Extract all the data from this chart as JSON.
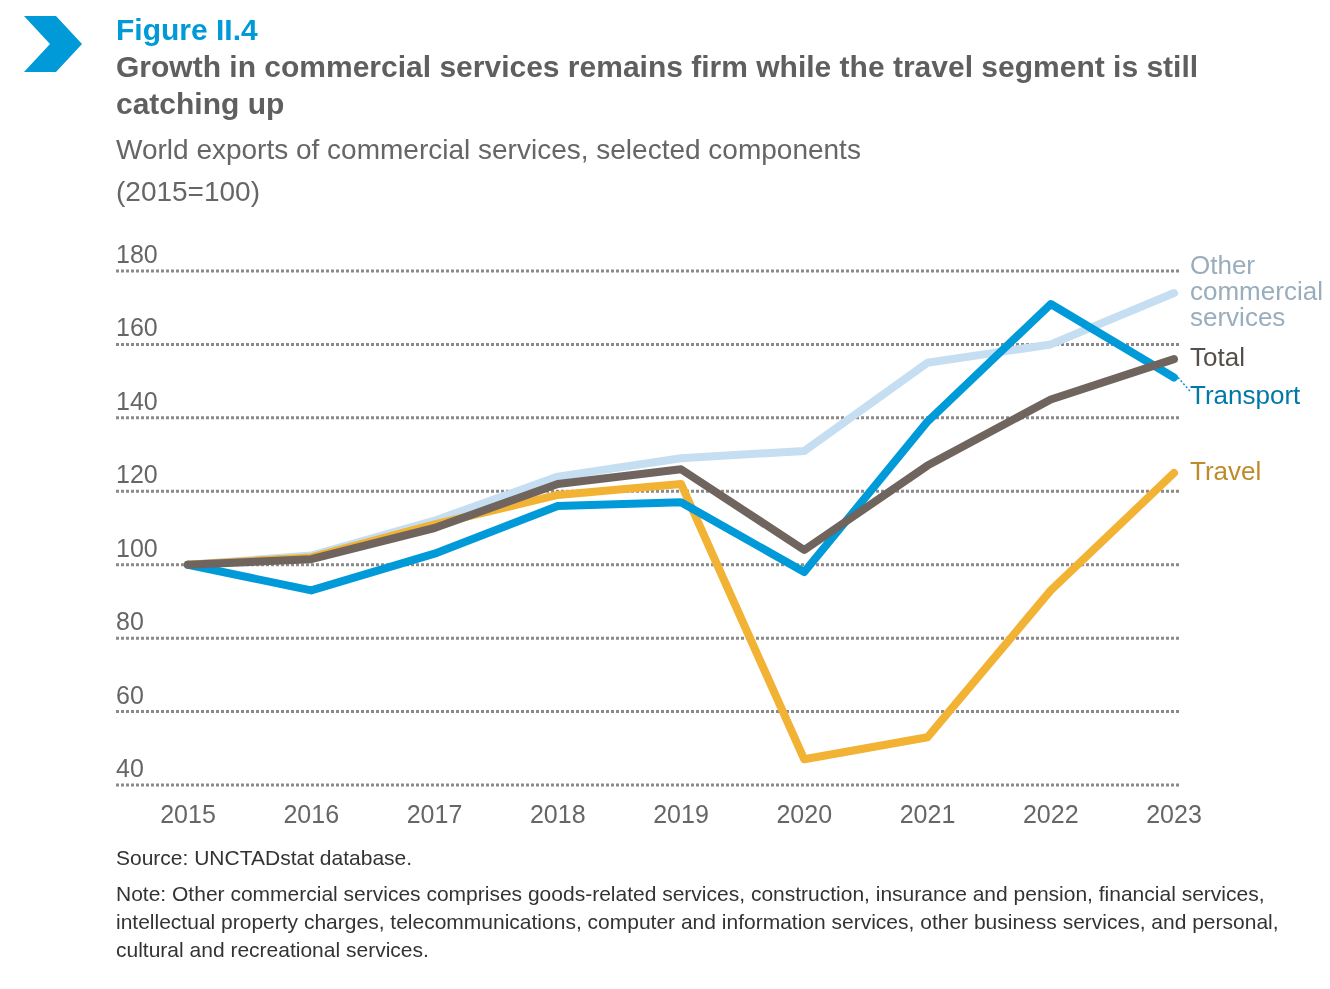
{
  "chart_data": {
    "type": "line",
    "title": "Growth in commercial services remains firm while the travel segment is still catching up",
    "subtitle": "World exports of commercial services, selected components",
    "ylabel": "(2015=100)",
    "categories": [
      "2015",
      "2016",
      "2017",
      "2018",
      "2019",
      "2020",
      "2021",
      "2022",
      "2023"
    ],
    "series": [
      {
        "name": "Other commercial services",
        "color": "#c5def2",
        "values": [
          100,
          102.5,
          112,
          124,
          129,
          131,
          155,
          160,
          174
        ]
      },
      {
        "name": "Travel",
        "color": "#f2b233",
        "values": [
          100,
          102,
          111,
          119,
          122,
          47,
          53,
          93,
          125
        ]
      },
      {
        "name": "Transport",
        "color": "#009ad9",
        "values": [
          100,
          93,
          103,
          116,
          117,
          98,
          139,
          171,
          151
        ]
      },
      {
        "name": "Total",
        "color": "#6f655e",
        "values": [
          100,
          101.5,
          110,
          122,
          126,
          104,
          127,
          145,
          156
        ]
      }
    ],
    "ylim": [
      40,
      180
    ],
    "yticks": [
      40,
      60,
      80,
      100,
      120,
      140,
      160,
      180
    ],
    "grid": "y",
    "line_style": "solid",
    "marker": "none",
    "annotations": [
      "Figure II.4",
      "Source: UNCTADstat database.",
      "Note: Other commercial services comprises goods-related services, construction, insurance and pension, financial services, intellectual property charges, telecommunications, computer and information services, other business services, and personal, cultural and recreational services."
    ]
  }
}
